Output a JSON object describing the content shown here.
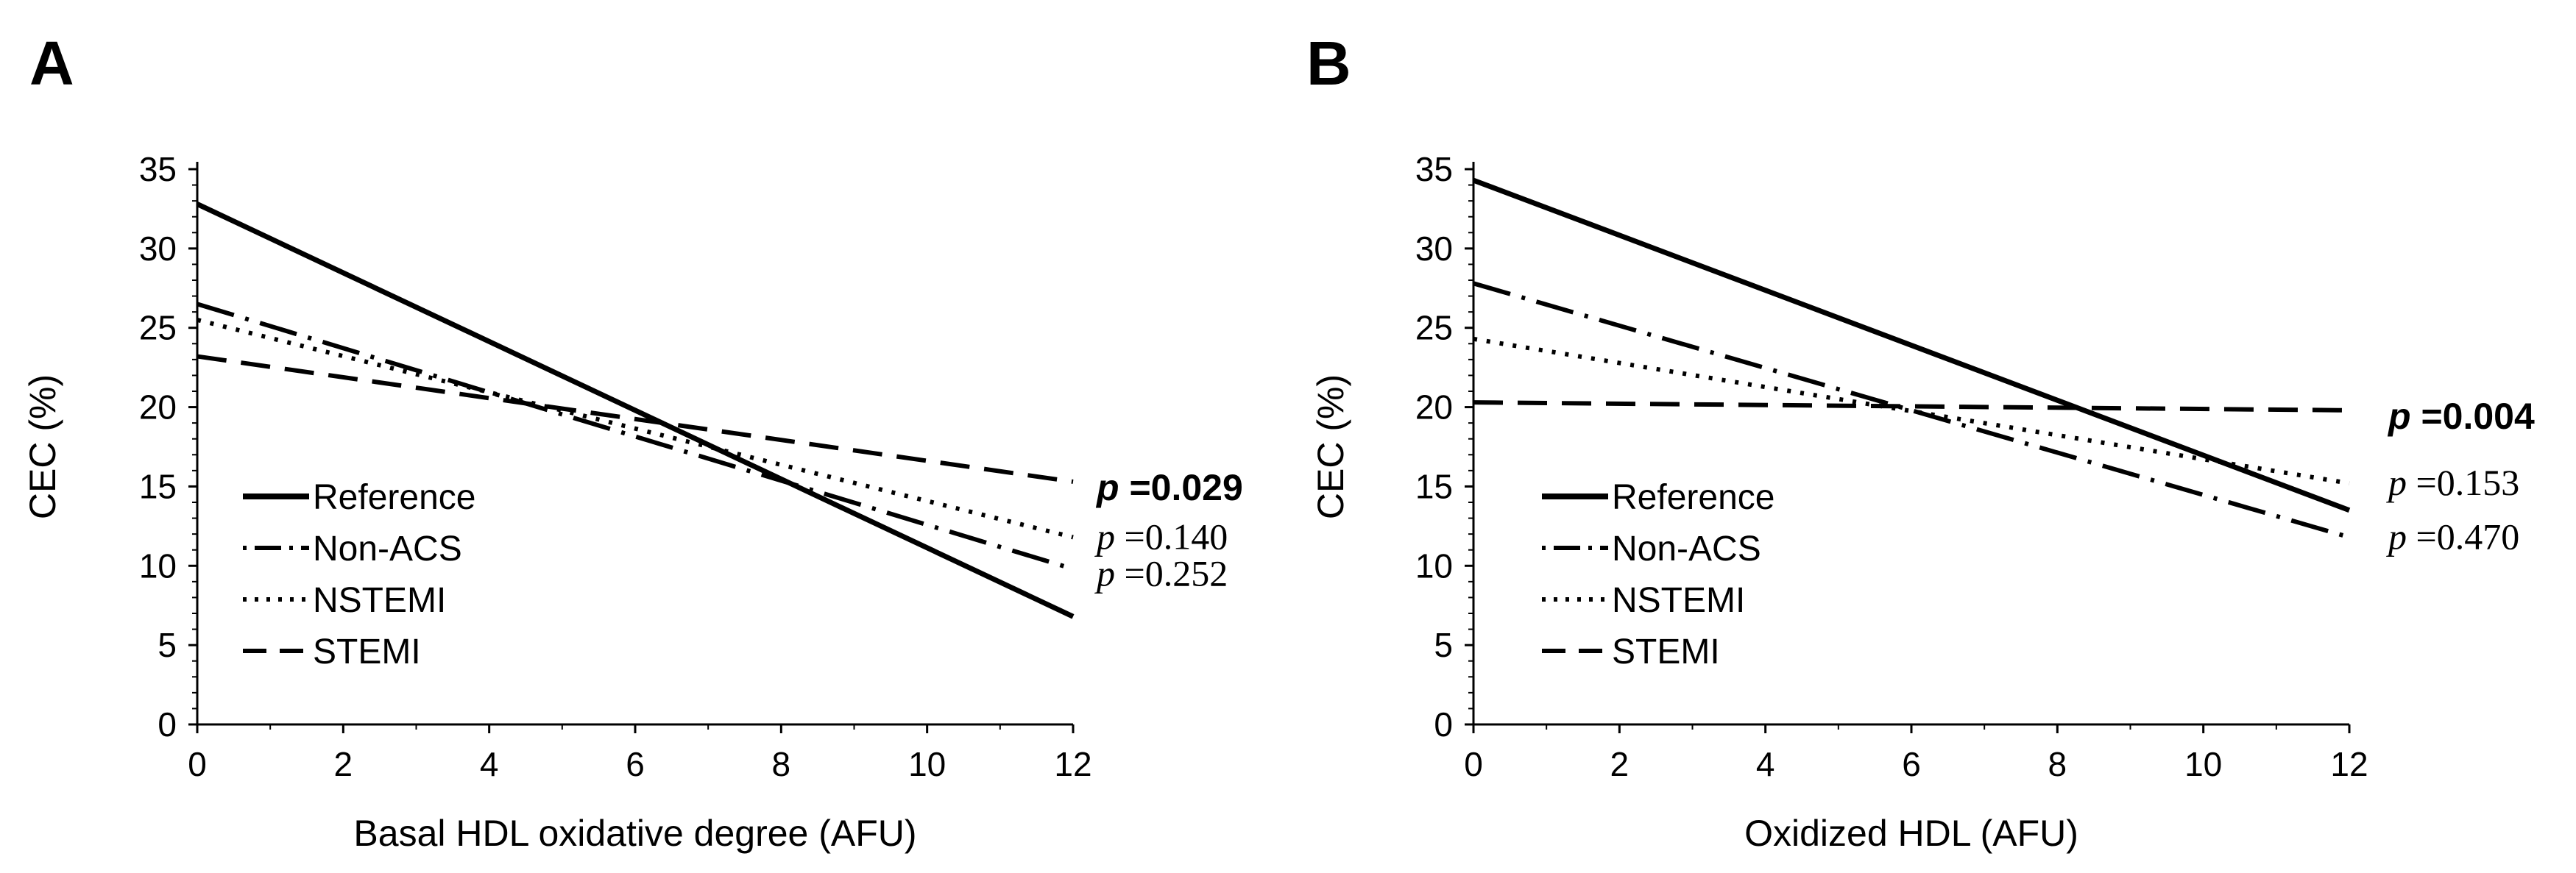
{
  "chart_data": [
    {
      "panel": "A",
      "type": "line",
      "title": "",
      "xlabel": "Basal HDL oxidative degree (AFU)",
      "ylabel": "CEC (%)",
      "xlim": [
        0,
        12
      ],
      "ylim": [
        0,
        35
      ],
      "xticks": [
        "0",
        "2",
        "4",
        "6",
        "8",
        "10",
        "12"
      ],
      "yticks": [
        "0",
        "5",
        "10",
        "15",
        "20",
        "25",
        "30",
        "35"
      ],
      "legend": [
        "Reference",
        "Non-ACS",
        "NSTEMI",
        "STEMI"
      ],
      "series": [
        {
          "name": "Reference",
          "style": "solid",
          "x": [
            0,
            12
          ],
          "y": [
            32.8,
            6.8
          ]
        },
        {
          "name": "Non-ACS",
          "style": "dashdot",
          "x": [
            0,
            12
          ],
          "y": [
            26.5,
            9.8
          ]
        },
        {
          "name": "NSTEMI",
          "style": "dotted",
          "x": [
            0,
            12
          ],
          "y": [
            25.5,
            11.8
          ]
        },
        {
          "name": "STEMI",
          "style": "dashed",
          "x": [
            0,
            12
          ],
          "y": [
            23.2,
            15.3
          ]
        }
      ],
      "annotations": [
        {
          "series": "STEMI",
          "prefix": "p",
          "value": " =0.029",
          "bold": true
        },
        {
          "series": "NSTEMI",
          "prefix": "p",
          "value": " =0.140",
          "bold": false
        },
        {
          "series": "Non-ACS",
          "prefix": "p",
          "value": " =0.252",
          "bold": false
        }
      ]
    },
    {
      "panel": "B",
      "type": "line",
      "title": "",
      "xlabel": "Oxidized HDL (AFU)",
      "ylabel": "CEC (%)",
      "xlim": [
        0,
        12
      ],
      "ylim": [
        0,
        35
      ],
      "xticks": [
        "0",
        "2",
        "4",
        "6",
        "8",
        "10",
        "12"
      ],
      "yticks": [
        "0",
        "5",
        "10",
        "15",
        "20",
        "25",
        "30",
        "35"
      ],
      "legend": [
        "Reference",
        "Non-ACS",
        "NSTEMI",
        "STEMI"
      ],
      "series": [
        {
          "name": "Reference",
          "style": "solid",
          "x": [
            0,
            12
          ],
          "y": [
            34.3,
            13.5
          ]
        },
        {
          "name": "Non-ACS",
          "style": "dashdot",
          "x": [
            0,
            12
          ],
          "y": [
            27.8,
            11.8
          ]
        },
        {
          "name": "NSTEMI",
          "style": "dotted",
          "x": [
            0,
            12
          ],
          "y": [
            24.3,
            15.2
          ]
        },
        {
          "name": "STEMI",
          "style": "dashed",
          "x": [
            0,
            12
          ],
          "y": [
            20.3,
            19.8
          ]
        }
      ],
      "annotations": [
        {
          "series": "STEMI",
          "prefix": "p",
          "value": " =0.004",
          "bold": true
        },
        {
          "series": "NSTEMI",
          "prefix": "p",
          "value": " =0.153",
          "bold": false
        },
        {
          "series": "Non-ACS",
          "prefix": "p",
          "value": " =0.470",
          "bold": false
        }
      ]
    }
  ]
}
